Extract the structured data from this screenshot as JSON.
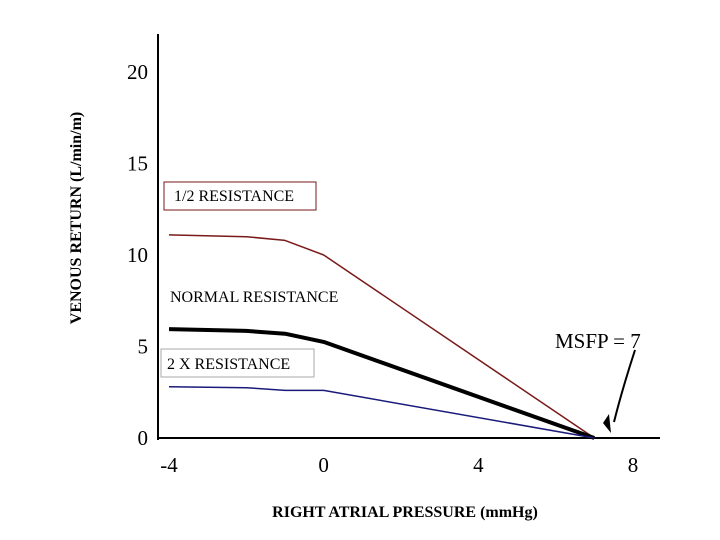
{
  "chart_data": {
    "type": "line",
    "xlabel": "RIGHT ATRIAL PRESSURE (mmHg)",
    "ylabel": "VENOUS RETURN (L/min/m)",
    "xlim": [
      -4,
      8
    ],
    "ylim": [
      0,
      20
    ],
    "x_ticks": [
      "-4",
      "0",
      "4",
      "8"
    ],
    "y_ticks": [
      "0",
      "5",
      "10",
      "15",
      "20"
    ],
    "grid": false,
    "series": [
      {
        "name": "1/2 RESISTANCE",
        "color": "#7a1a1a",
        "x": [
          -4,
          -2,
          -1,
          0,
          7
        ],
        "y": [
          11.1,
          11.0,
          10.8,
          10.0,
          0
        ]
      },
      {
        "name": "NORMAL RESISTANCE",
        "color": "#000000",
        "x": [
          -4,
          -2,
          -1,
          0,
          7
        ],
        "y": [
          5.95,
          5.85,
          5.7,
          5.25,
          0
        ]
      },
      {
        "name": "2 X RESISTANCE",
        "color": "#1a1a7a",
        "x": [
          -4,
          -2,
          -1,
          0,
          7
        ],
        "y": [
          2.8,
          2.75,
          2.6,
          2.6,
          0
        ]
      }
    ],
    "annotations": [
      {
        "text": "MSFP = 7",
        "x": 7,
        "y": 0
      }
    ]
  }
}
